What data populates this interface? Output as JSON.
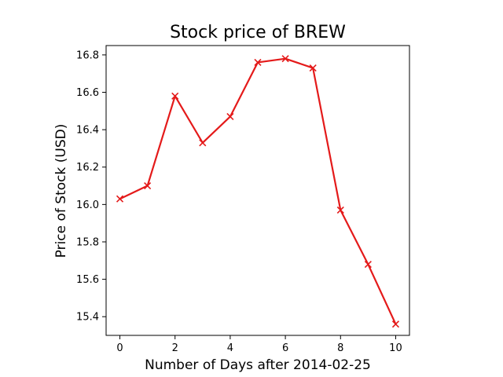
{
  "chart_data": {
    "type": "line",
    "title": "Stock price of BREW",
    "xlabel": "Number of Days after 2014-02-25",
    "ylabel": "Price of Stock (USD)",
    "x": [
      0,
      1,
      2,
      3,
      4,
      5,
      6,
      7,
      8,
      9,
      10
    ],
    "series": [
      {
        "values": [
          16.03,
          16.1,
          16.58,
          16.33,
          16.47,
          16.76,
          16.78,
          16.73,
          15.97,
          15.68,
          15.36
        ],
        "color": "#e41a1a",
        "marker": "x"
      }
    ],
    "xlim": [
      -0.5,
      10.5
    ],
    "ylim": [
      15.3,
      16.85
    ],
    "xticks": [
      0,
      2,
      4,
      6,
      8,
      10
    ],
    "xtick_labels": [
      "0",
      "2",
      "4",
      "6",
      "8",
      "10"
    ],
    "yticks": [
      15.4,
      15.6,
      15.8,
      16.0,
      16.2,
      16.4,
      16.6,
      16.8
    ],
    "ytick_labels": [
      "15.4",
      "15.6",
      "15.8",
      "16.0",
      "16.2",
      "16.4",
      "16.6",
      "16.8"
    ],
    "grid": false,
    "legend": "none"
  }
}
